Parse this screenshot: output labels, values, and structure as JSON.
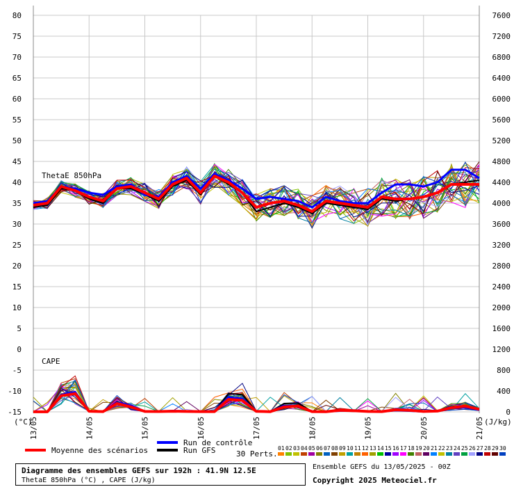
{
  "chart_data": {
    "type": "line",
    "title": "Diagramme des ensembles GEFS sur 192h : 41.9N 12.5E",
    "subtitle": "ThetaE 850hPa (°C) , CAPE (J/kg)",
    "y_left": {
      "unit": "(°C)",
      "ticks": [
        80,
        75,
        70,
        65,
        60,
        55,
        50,
        45,
        40,
        35,
        30,
        25,
        20,
        15,
        10,
        5,
        0,
        -5,
        -10,
        -15
      ],
      "range": [
        -15,
        80
      ]
    },
    "y_right": {
      "unit": "(J/kg)",
      "ticks": [
        7600,
        7200,
        6800,
        6400,
        6000,
        5600,
        5200,
        4800,
        4400,
        4000,
        3600,
        3200,
        2800,
        2400,
        2000,
        1600,
        1200,
        800,
        400,
        0
      ],
      "range": [
        0,
        7600
      ]
    },
    "x_ticks": [
      "13/05",
      "14/05",
      "15/05",
      "16/05",
      "17/05",
      "18/05",
      "19/05",
      "20/05",
      "21/05"
    ],
    "x_hours": [
      0,
      6,
      12,
      18,
      24,
      30,
      36,
      42,
      48,
      54,
      60,
      66,
      72,
      78,
      84,
      90,
      96,
      102,
      108,
      114,
      120,
      126,
      132,
      138,
      144,
      150,
      156,
      162,
      168,
      174,
      180,
      186,
      192
    ],
    "panel_labels": {
      "thetae": "ThetaE 850hPa",
      "cape": "CAPE"
    },
    "series": [
      {
        "name": "Moyenne des scénarios",
        "color": "#ff0000",
        "thetae": [
          34.5,
          35,
          39,
          38,
          36.5,
          35.5,
          38.5,
          39,
          37.5,
          36,
          39.5,
          41,
          37.5,
          41.5,
          40,
          37.5,
          34,
          35,
          35.5,
          34.5,
          33,
          35.5,
          35,
          34.5,
          34,
          36.5,
          36,
          36,
          36.5,
          37.5,
          39.5,
          39.5,
          39.5
        ],
        "cape": [
          2,
          2,
          310,
          350,
          12,
          5,
          160,
          95,
          8,
          6,
          12,
          8,
          5,
          5,
          240,
          220,
          10,
          4,
          95,
          110,
          5,
          4,
          30,
          22,
          8,
          5,
          40,
          30,
          8,
          15,
          80,
          110,
          50
        ]
      },
      {
        "name": "Run de contrôle",
        "color": "#0000ff",
        "thetae": [
          35,
          35.5,
          39,
          38.5,
          37.5,
          37,
          39,
          39.5,
          37,
          36.5,
          40,
          41.5,
          38.5,
          42,
          40.5,
          38.5,
          36,
          36.5,
          36,
          35.5,
          34,
          36.5,
          35.5,
          35,
          35,
          37.5,
          39.5,
          39.5,
          39,
          40,
          43,
          43,
          41
        ],
        "cape": [
          2,
          2,
          330,
          380,
          10,
          5,
          180,
          120,
          8,
          5,
          20,
          10,
          5,
          5,
          280,
          250,
          10,
          5,
          120,
          100,
          5,
          5,
          20,
          30,
          5,
          5,
          30,
          20,
          5,
          20,
          70,
          90,
          40
        ]
      },
      {
        "name": "Run GFS",
        "color": "#000000",
        "thetae": [
          34,
          34.5,
          38.5,
          38,
          36,
          35,
          38.5,
          38.5,
          37,
          35.5,
          39,
          40.5,
          37,
          41.5,
          39.5,
          37.5,
          33,
          34,
          35,
          34,
          32.5,
          35,
          34.5,
          34,
          33.5,
          36,
          35.5,
          36,
          36.5,
          37.5,
          39.5,
          40,
          40.5
        ],
        "cape": [
          2,
          2,
          300,
          370,
          10,
          5,
          150,
          120,
          8,
          5,
          10,
          5,
          5,
          5,
          350,
          330,
          10,
          5,
          160,
          170,
          5,
          5,
          20,
          10,
          5,
          5,
          50,
          40,
          5,
          10,
          90,
          120,
          60
        ]
      }
    ],
    "perturbations": {
      "label": "30 Perts.",
      "ids": [
        "01",
        "02",
        "03",
        "04",
        "05",
        "06",
        "07",
        "08",
        "09",
        "10",
        "11",
        "12",
        "13",
        "14",
        "15",
        "16",
        "17",
        "18",
        "19",
        "20",
        "21",
        "22",
        "23",
        "24",
        "25",
        "26",
        "27",
        "28",
        "29",
        "30"
      ],
      "colors": [
        "#ff8000",
        "#80c000",
        "#c0c000",
        "#c04000",
        "#a000a0",
        "#808000",
        "#0060c0",
        "#804000",
        "#c0a000",
        "#00a0a0",
        "#c08000",
        "#ff6000",
        "#a0a000",
        "#00c000",
        "#0000a0",
        "#a000ff",
        "#ff00ff",
        "#408000",
        "#c06060",
        "#600060",
        "#0080ff",
        "#c0c000",
        "#0080a0",
        "#6040c0",
        "#00a040",
        "#a0a0ff",
        "#000080",
        "#c00000",
        "#600000",
        "#0040c0"
      ]
    }
  },
  "footer": {
    "ensemble_label": "Ensemble GEFS du 13/05/2025 - 00Z",
    "copyright": "Copyright 2025 Meteociel.fr"
  }
}
